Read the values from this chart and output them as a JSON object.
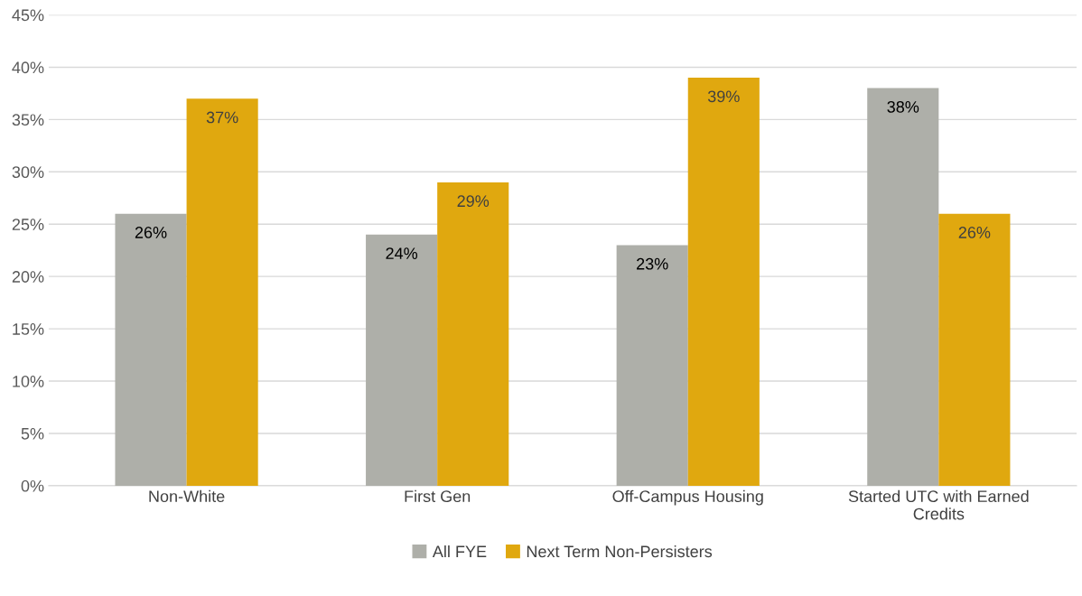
{
  "chart_data": {
    "type": "bar",
    "categories": [
      "Non-White",
      "First Gen",
      "Off-Campus Housing",
      "Started UTC with Earned\nCredits"
    ],
    "series": [
      {
        "name": "All FYE",
        "color": "#aeafa9",
        "values": [
          26,
          24,
          23,
          38
        ],
        "value_labels": [
          "26%",
          "24%",
          "23%",
          "38%"
        ]
      },
      {
        "name": "Next Term Non-Persisters",
        "color": "#e0a80f",
        "values": [
          37,
          29,
          39,
          26
        ],
        "value_labels": [
          "37%",
          "29%",
          "39%",
          "26%"
        ]
      }
    ],
    "ylim": [
      0,
      45
    ],
    "yticks": [
      {
        "value": 0,
        "label": "0%"
      },
      {
        "value": 5,
        "label": "5%"
      },
      {
        "value": 10,
        "label": "10%"
      },
      {
        "value": 15,
        "label": "15%"
      },
      {
        "value": 20,
        "label": "20%"
      },
      {
        "value": 25,
        "label": "25%"
      },
      {
        "value": 30,
        "label": "30%"
      },
      {
        "value": 35,
        "label": "35%"
      },
      {
        "value": 40,
        "label": "40%"
      },
      {
        "value": 45,
        "label": "45%"
      }
    ],
    "grid": "y",
    "legend": "bottom"
  }
}
